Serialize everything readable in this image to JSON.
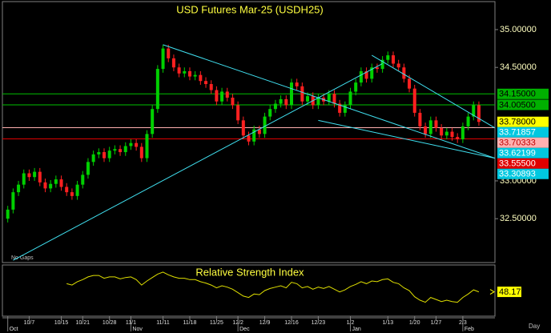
{
  "chart_data": {
    "type": "candlestick",
    "title": "USD Futures Mar-25 (USDH25)",
    "note": "No Gaps",
    "period": "Day",
    "up_color": "#00d000",
    "down_color": "#ff2020",
    "xlim": [
      -1,
      91
    ],
    "ylim": [
      31.92,
      35.37
    ],
    "yticks": [
      {
        "value": 35,
        "label": "35.00000"
      },
      {
        "value": 34.5,
        "label": "34.50000"
      },
      {
        "value": 33,
        "label": "33.00000"
      },
      {
        "value": 32.5,
        "label": "32.50000"
      }
    ],
    "xticks": [
      {
        "value": 4,
        "label": "10/7"
      },
      {
        "value": 10,
        "label": "10/15"
      },
      {
        "value": 14,
        "label": "10/21"
      },
      {
        "value": 19,
        "label": "10/28"
      },
      {
        "value": 23,
        "label": "11/1"
      },
      {
        "value": 29,
        "label": "11/11"
      },
      {
        "value": 34,
        "label": "11/18"
      },
      {
        "value": 39,
        "label": "11/25"
      },
      {
        "value": 43,
        "label": "12/2"
      },
      {
        "value": 48,
        "label": "12/9"
      },
      {
        "value": 53,
        "label": "12/16"
      },
      {
        "value": 58,
        "label": "12/23"
      },
      {
        "value": 64,
        "label": "1/2"
      },
      {
        "value": 71,
        "label": "1/13"
      },
      {
        "value": 76,
        "label": "1/20"
      },
      {
        "value": 80,
        "label": "1/27"
      },
      {
        "value": 85,
        "label": "2/3"
      }
    ],
    "month_ticks": [
      {
        "value": 0,
        "label": "Oct"
      },
      {
        "value": 23,
        "label": "Nov"
      },
      {
        "value": 43,
        "label": "Dec"
      },
      {
        "value": 64,
        "label": "Jan"
      },
      {
        "value": 85,
        "label": "Feb"
      }
    ],
    "open": [
      32.5,
      32.62,
      32.85,
      32.95,
      33.1,
      33.05,
      33.12,
      32.98,
      32.9,
      32.96,
      33.02,
      32.92,
      32.85,
      32.8,
      32.95,
      33.08,
      33.25,
      33.35,
      33.38,
      33.3,
      33.4,
      33.42,
      33.38,
      33.46,
      33.5,
      33.45,
      33.3,
      33.62,
      33.95,
      34.48,
      34.75,
      34.62,
      34.5,
      34.42,
      34.45,
      34.38,
      34.4,
      34.32,
      34.28,
      34.2,
      34.05,
      34.18,
      34.1,
      34.0,
      33.8,
      33.6,
      33.52,
      33.68,
      33.62,
      33.85,
      33.95,
      34.02,
      34.08,
      34.0,
      34.3,
      34.25,
      34.05,
      34.12,
      34.0,
      34.1,
      34.05,
      34.15,
      34.02,
      33.9,
      34.0,
      34.18,
      34.3,
      34.45,
      34.35,
      34.5,
      34.48,
      34.6,
      34.66,
      34.55,
      34.5,
      34.35,
      34.22,
      33.9,
      33.72,
      33.62,
      33.8,
      33.7,
      33.6,
      33.65,
      33.58,
      33.55,
      33.72,
      33.85,
      34.0
    ],
    "high": [
      32.67,
      32.9,
      33.0,
      33.15,
      33.15,
      33.17,
      33.17,
      33.03,
      33.01,
      33.07,
      33.07,
      32.97,
      32.9,
      33.0,
      33.13,
      33.3,
      33.4,
      33.43,
      33.43,
      33.45,
      33.47,
      33.47,
      33.51,
      33.55,
      33.55,
      33.5,
      33.67,
      34.0,
      34.53,
      34.8,
      34.8,
      34.67,
      34.55,
      34.5,
      34.5,
      34.45,
      34.45,
      34.37,
      34.33,
      34.25,
      34.23,
      34.23,
      34.15,
      34.05,
      33.85,
      33.65,
      33.73,
      33.73,
      33.9,
      34.0,
      34.07,
      34.13,
      34.13,
      34.35,
      34.35,
      34.3,
      34.17,
      34.17,
      34.15,
      34.15,
      34.2,
      34.2,
      34.07,
      34.05,
      34.23,
      34.35,
      34.5,
      34.5,
      34.55,
      34.55,
      34.65,
      34.71,
      34.71,
      34.6,
      34.55,
      34.4,
      34.27,
      33.95,
      33.77,
      33.85,
      33.85,
      33.75,
      33.7,
      33.7,
      33.63,
      33.77,
      33.9,
      34.05,
      34.05
    ],
    "low": [
      32.45,
      32.57,
      32.8,
      32.9,
      33.0,
      33.0,
      32.93,
      32.85,
      32.85,
      32.91,
      32.87,
      32.8,
      32.75,
      32.75,
      32.9,
      33.03,
      33.2,
      33.3,
      33.25,
      33.25,
      33.35,
      33.33,
      33.33,
      33.41,
      33.4,
      33.25,
      33.25,
      33.57,
      33.9,
      34.43,
      34.57,
      34.45,
      34.37,
      34.37,
      34.33,
      34.33,
      34.27,
      34.23,
      34.15,
      34.0,
      34.0,
      34.05,
      33.95,
      33.75,
      33.55,
      33.47,
      33.47,
      33.57,
      33.57,
      33.8,
      33.9,
      33.97,
      33.95,
      33.95,
      34.2,
      34.0,
      34.0,
      33.95,
      33.95,
      34.0,
      34.0,
      33.97,
      33.85,
      33.85,
      33.95,
      34.13,
      34.25,
      34.3,
      34.3,
      34.43,
      34.43,
      34.55,
      34.5,
      34.45,
      34.3,
      34.17,
      33.85,
      33.67,
      33.57,
      33.57,
      33.65,
      33.55,
      33.55,
      33.53,
      33.5,
      33.5,
      33.67,
      33.8,
      33.73
    ],
    "close": [
      32.62,
      32.85,
      32.95,
      33.1,
      33.05,
      33.12,
      32.98,
      32.9,
      32.96,
      33.02,
      32.92,
      32.85,
      32.8,
      32.95,
      33.08,
      33.25,
      33.35,
      33.38,
      33.3,
      33.4,
      33.42,
      33.38,
      33.46,
      33.5,
      33.45,
      33.3,
      33.62,
      33.95,
      34.48,
      34.75,
      34.62,
      34.5,
      34.42,
      34.45,
      34.38,
      34.4,
      34.32,
      34.28,
      34.2,
      34.05,
      34.18,
      34.1,
      34.0,
      33.8,
      33.6,
      33.52,
      33.68,
      33.62,
      33.85,
      33.95,
      34.02,
      34.08,
      34.0,
      34.3,
      34.25,
      34.05,
      34.12,
      34.0,
      34.1,
      34.05,
      34.15,
      34.02,
      33.9,
      34.0,
      34.18,
      34.3,
      34.45,
      34.35,
      34.5,
      34.48,
      34.6,
      34.66,
      34.55,
      34.5,
      34.35,
      34.22,
      33.9,
      33.72,
      33.62,
      33.8,
      33.7,
      33.6,
      33.65,
      33.58,
      33.55,
      33.72,
      33.85,
      34.0,
      33.78
    ],
    "trendline_color": "#40e0f0",
    "trendlines": [
      {
        "x": [
          29,
          91
        ],
        "y": [
          34.8,
          33.3
        ]
      },
      {
        "x": [
          1,
          70
        ],
        "y": [
          31.95,
          34.55
        ]
      },
      {
        "x": [
          68,
          91
        ],
        "y": [
          34.66,
          33.7
        ]
      },
      {
        "x": [
          58,
          91
        ],
        "y": [
          33.8,
          33.3
        ]
      }
    ],
    "price_labels": [
      {
        "value": 34.15,
        "label": "34.15000",
        "bg": "#00b000",
        "fg": "#000000",
        "line": "#00c000"
      },
      {
        "value": 34.005,
        "label": "34.00500",
        "bg": "#00b000",
        "fg": "#000000",
        "line": "#00c000"
      },
      {
        "value": 33.78,
        "label": "33.78000",
        "bg": "#ffff00",
        "fg": "#000000",
        "line": false
      },
      {
        "value": 33.71857,
        "label": "33.71857",
        "bg": "#00c8e0",
        "fg": "#ffffff",
        "line": false
      },
      {
        "value": 33.70333,
        "label": "33.70333",
        "bg": "#ffb0b0",
        "fg": "#c00000",
        "line": "#ffb0b0"
      },
      {
        "value": 33.62199,
        "label": "33.62199",
        "bg": "#00c8e0",
        "fg": "#ffffff",
        "line": false
      },
      {
        "value": 33.555,
        "label": "33.55500",
        "bg": "#e00000",
        "fg": "#ffffff",
        "line": "#e00000"
      },
      {
        "value": 33.30893,
        "label": "33.30893",
        "bg": "#00c8e0",
        "fg": "#ffffff",
        "line": false
      }
    ],
    "rsi": {
      "title": "Relative Strength Index",
      "color": "#e0e000",
      "ylim": [
        15,
        85
      ],
      "values": [
        null,
        null,
        null,
        null,
        null,
        null,
        null,
        null,
        null,
        null,
        null,
        60,
        58,
        63,
        66,
        70,
        72,
        72,
        68,
        70,
        70,
        67,
        69,
        70,
        66,
        58,
        64,
        69,
        74,
        77,
        73,
        70,
        68,
        68,
        66,
        66,
        63,
        61,
        58,
        54,
        57,
        55,
        52,
        47,
        42,
        40,
        45,
        44,
        50,
        53,
        55,
        57,
        54,
        62,
        60,
        54,
        56,
        52,
        55,
        53,
        56,
        52,
        48,
        51,
        56,
        59,
        63,
        60,
        64,
        63,
        66,
        67,
        62,
        60,
        54,
        50,
        41,
        36,
        33,
        40,
        37,
        34,
        36,
        34,
        33,
        40,
        45,
        51,
        48.17
      ]
    }
  }
}
